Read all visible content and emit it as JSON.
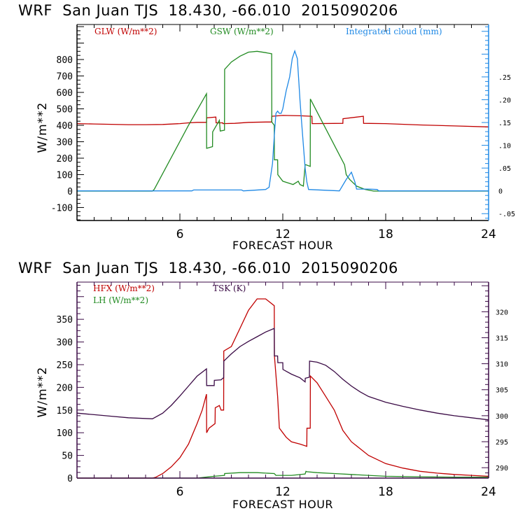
{
  "chart_data": [
    {
      "type": "line",
      "title": "WRF  San Juan TJS  18.430, -66.010  2015090206",
      "xlabel": "FORECAST HOUR",
      "ylabel": "W/m**2",
      "xlim": [
        0,
        24
      ],
      "ylim": [
        -179,
        1013
      ],
      "y2lim": [
        -0.065,
        0.365
      ],
      "x_ticks": [
        6,
        12,
        18,
        24
      ],
      "x_tick_labels": [
        "6",
        "12",
        "18",
        "24"
      ],
      "y_ticks": [
        -100,
        0,
        100,
        200,
        300,
        400,
        500,
        600,
        700,
        800
      ],
      "y_tick_labels": [
        "-100",
        "0",
        "100",
        "200",
        "300",
        "400",
        "500",
        "600",
        "700",
        "800"
      ],
      "y2_ticks": [
        -0.05,
        0,
        0.05,
        0.1,
        0.15,
        0.2,
        0.25
      ],
      "y2_tick_labels": [
        "-.05",
        "0",
        ".05",
        ".10",
        ".15",
        ".20",
        ".25"
      ],
      "axis_color": "#000000",
      "right_axis_color": "#1e88e5",
      "grid": false,
      "legend_placement": "top",
      "series": [
        {
          "name": "GLW (W/m**2)",
          "axis": "left",
          "color": "#c00000",
          "x": [
            0,
            1,
            2,
            3,
            4,
            5,
            6,
            6.5,
            7,
            7.55,
            7.56,
            8.1,
            8.11,
            8.5,
            8.51,
            9.2,
            10,
            11,
            11.35,
            11.36,
            12,
            13,
            13.7,
            13.71,
            15.5,
            15.51,
            16.7,
            16.71,
            18,
            20,
            22,
            24
          ],
          "y": [
            410,
            408,
            406,
            404,
            404,
            405,
            410,
            415,
            418,
            418,
            445,
            450,
            415,
            415,
            410,
            412,
            418,
            420,
            420,
            455,
            460,
            458,
            455,
            410,
            412,
            440,
            455,
            412,
            410,
            402,
            396,
            390
          ]
        },
        {
          "name": "GSW (W/m**2)",
          "axis": "left",
          "color": "#228b22",
          "x": [
            0,
            4.4,
            4.5,
            5.5,
            6.5,
            7.55,
            7.56,
            7.9,
            7.91,
            8.3,
            8.35,
            8.6,
            8.61,
            9.0,
            9.5,
            10.0,
            10.5,
            11.0,
            11.35,
            11.36,
            11.5,
            11.51,
            11.7,
            11.71,
            12.0,
            12.3,
            12.6,
            12.9,
            13.0,
            13.2,
            13.3,
            13.35,
            13.6,
            13.61,
            14.5,
            15.6,
            15.7,
            15.9,
            16.3,
            16.8,
            17.3,
            24
          ],
          "y": [
            0,
            0,
            10,
            205,
            400,
            592,
            260,
            270,
            360,
            430,
            365,
            370,
            740,
            785,
            820,
            845,
            850,
            842,
            835,
            420,
            400,
            190,
            190,
            100,
            60,
            50,
            40,
            60,
            40,
            30,
            160,
            160,
            150,
            560,
            380,
            160,
            100,
            70,
            30,
            10,
            0,
            0
          ]
        },
        {
          "name": "Integrated cloud (mm)",
          "axis": "right",
          "color": "#1e88e5",
          "x": [
            0,
            6.7,
            6.8,
            9.6,
            9.7,
            11.0,
            11.2,
            11.4,
            11.5,
            11.6,
            11.7,
            11.8,
            11.9,
            12.0,
            12.1,
            12.2,
            12.4,
            12.55,
            12.7,
            12.85,
            12.95,
            13.0,
            13.1,
            13.2,
            13.3,
            13.4,
            13.5,
            15.3,
            15.7,
            16.0,
            16.2,
            16.3,
            17.0,
            17.5,
            17.6,
            24
          ],
          "y": [
            0,
            0,
            0.002,
            0.002,
            0,
            0.003,
            0.008,
            0.06,
            0.12,
            0.17,
            0.175,
            0.17,
            0.17,
            0.18,
            0.2,
            0.22,
            0.25,
            0.29,
            0.307,
            0.29,
            0.23,
            0.2,
            0.15,
            0.1,
            0.05,
            0.02,
            0.003,
            0,
            0.025,
            0.041,
            0.02,
            0.004,
            0.004,
            0.003,
            0,
            0
          ]
        }
      ]
    },
    {
      "type": "line",
      "title": "WRF  San Juan TJS  18.430, -66.010  2015090206",
      "xlabel": "FORECAST HOUR",
      "ylabel": "W/m**2",
      "xlim": [
        0,
        24
      ],
      "ylim": [
        0,
        432
      ],
      "y2lim": [
        288.0,
        325.7
      ],
      "x_ticks": [
        6,
        12,
        18,
        24
      ],
      "x_tick_labels": [
        "6",
        "12",
        "18",
        "24"
      ],
      "y_ticks": [
        0,
        50,
        100,
        150,
        200,
        250,
        300,
        350
      ],
      "y_tick_labels": [
        "0",
        "50",
        "100",
        "150",
        "200",
        "250",
        "300",
        "350"
      ],
      "y2_ticks": [
        290,
        295,
        300,
        305,
        310,
        315,
        320
      ],
      "y2_tick_labels": [
        "290",
        "295",
        "300",
        "305",
        "310",
        "315",
        "320"
      ],
      "axis_color": "#3a0a45",
      "right_axis_color": "#3a0a45",
      "grid": false,
      "legend_placement": "top",
      "series": [
        {
          "name": "HFX (W/m**2)",
          "axis": "left",
          "color": "#c00000",
          "x": [
            0,
            4.4,
            4.6,
            5.0,
            5.5,
            6.0,
            6.5,
            7.0,
            7.3,
            7.55,
            7.56,
            7.7,
            8.05,
            8.06,
            8.3,
            8.4,
            8.55,
            8.56,
            9.0,
            9.5,
            10.0,
            10.5,
            11.0,
            11.5,
            11.51,
            11.7,
            11.8,
            12.0,
            12.2,
            12.5,
            13.0,
            13.4,
            13.41,
            13.6,
            13.61,
            14.0,
            14.5,
            15.0,
            15.5,
            16.0,
            16.5,
            17.0,
            18.0,
            19.0,
            20.0,
            21.0,
            22.0,
            23.0,
            24.0
          ],
          "y": [
            0,
            0,
            2,
            10,
            25,
            45,
            75,
            120,
            150,
            185,
            100,
            110,
            120,
            155,
            160,
            150,
            150,
            280,
            290,
            330,
            370,
            395,
            395,
            380,
            270,
            180,
            110,
            100,
            90,
            80,
            75,
            70,
            110,
            110,
            225,
            210,
            180,
            150,
            105,
            80,
            65,
            50,
            32,
            22,
            15,
            11,
            8,
            6,
            4
          ]
        },
        {
          "name": "LH (W/m**2)",
          "axis": "left",
          "color": "#228b22",
          "x": [
            0,
            7.0,
            7.5,
            8.0,
            8.6,
            8.61,
            9.5,
            10.5,
            11.5,
            11.6,
            12.5,
            13.3,
            13.35,
            13.4,
            14.0,
            15.0,
            16.0,
            17.0,
            18.0,
            20.0,
            22.0,
            24.0
          ],
          "y": [
            0,
            0,
            2,
            4,
            6,
            10,
            12,
            12,
            10,
            6,
            6,
            9,
            15,
            14,
            12,
            10,
            8,
            6,
            4,
            3,
            2,
            2
          ],
          "fill_base_color": "#c00000"
        },
        {
          "name": "TSK (K)",
          "axis": "right",
          "color": "#3a0a45",
          "x": [
            0,
            1,
            2,
            3,
            4.4,
            5.0,
            5.5,
            6.0,
            6.5,
            7.0,
            7.55,
            7.56,
            8.0,
            8.01,
            8.4,
            8.5,
            8.55,
            8.56,
            9.0,
            9.5,
            10.0,
            10.5,
            11.0,
            11.5,
            11.51,
            11.7,
            11.71,
            12.0,
            12.01,
            12.5,
            13.0,
            13.3,
            13.31,
            13.55,
            13.56,
            14.0,
            14.5,
            15.0,
            15.5,
            16.0,
            16.5,
            17.0,
            18.0,
            19.0,
            20.0,
            21.0,
            22.0,
            23.0,
            24.0
          ],
          "y": [
            300.5,
            300.2,
            299.9,
            299.6,
            299.4,
            300.5,
            302.0,
            303.8,
            305.7,
            307.6,
            309.0,
            305.8,
            305.8,
            306.8,
            306.9,
            307.2,
            307.3,
            310.5,
            311.9,
            313.3,
            314.3,
            315.2,
            316.1,
            316.8,
            311.5,
            311.5,
            310.2,
            310.2,
            308.9,
            308.0,
            307.3,
            306.5,
            307.2,
            307.4,
            310.5,
            310.3,
            309.7,
            308.5,
            307.0,
            305.7,
            304.6,
            303.7,
            302.6,
            301.8,
            301.1,
            300.5,
            300.0,
            299.6,
            299.2
          ]
        }
      ]
    }
  ]
}
